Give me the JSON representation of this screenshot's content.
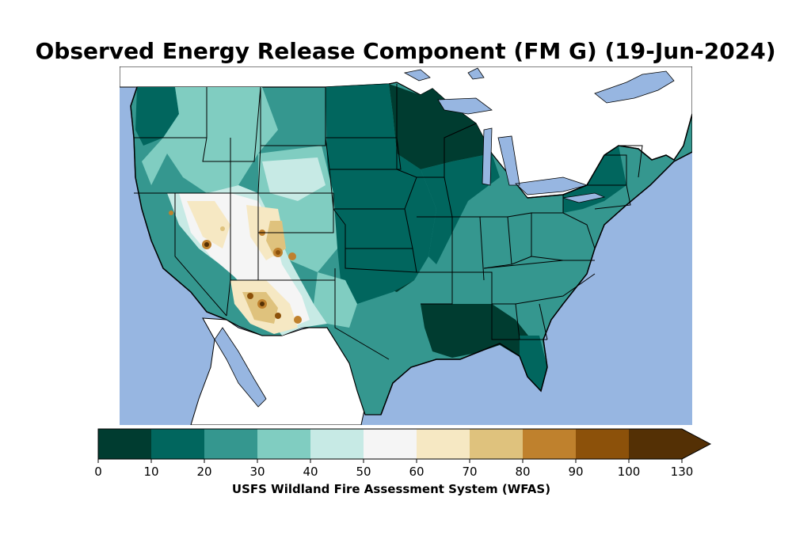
{
  "title": "Observed Energy Release Component (FM G) (19-Jun-2024)",
  "colorbar": {
    "caption": "USFS Wildland Fire Assessment System (WFAS)",
    "ticks": [
      "0",
      "10",
      "20",
      "30",
      "40",
      "50",
      "60",
      "70",
      "80",
      "90",
      "100",
      "130"
    ],
    "bins": [
      {
        "range": "0-10",
        "color": "#003c30"
      },
      {
        "range": "10-20",
        "color": "#01665e"
      },
      {
        "range": "20-30",
        "color": "#35978f"
      },
      {
        "range": "30-40",
        "color": "#80cdc1"
      },
      {
        "range": "40-50",
        "color": "#c7eae5"
      },
      {
        "range": "50-60",
        "color": "#f5f5f5"
      },
      {
        "range": "60-70",
        "color": "#f6e8c3"
      },
      {
        "range": "70-80",
        "color": "#dfc27d"
      },
      {
        "range": "80-90",
        "color": "#bf812d"
      },
      {
        "range": "90-100",
        "color": "#8c510a"
      },
      {
        "range": "100-130",
        "color": "#543005"
      }
    ],
    "extend": "max"
  },
  "colors": {
    "water": "#97b6e1",
    "land_outside": "#ffffff",
    "boundary": "#000000"
  }
}
